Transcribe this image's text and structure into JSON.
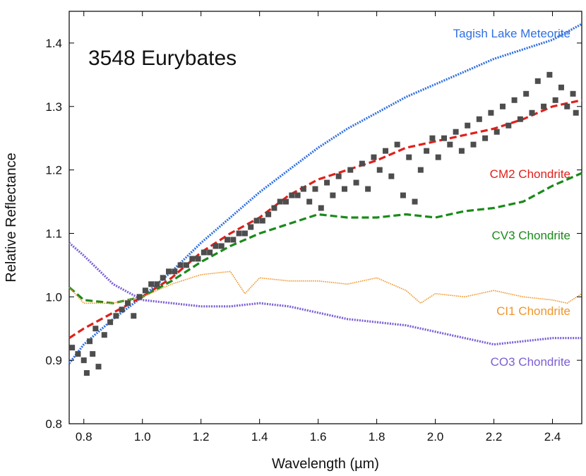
{
  "chart_data": {
    "type": "line",
    "annotation": "3548 Eurybates",
    "xlabel": "Wavelength (µm)",
    "ylabel": "Relative Reflectance",
    "xlim": [
      0.75,
      2.5
    ],
    "ylim": [
      0.8,
      1.45
    ],
    "xticks": [
      0.8,
      1.0,
      1.2,
      1.4,
      1.6,
      1.8,
      2.0,
      2.2,
      2.4
    ],
    "xtick_labels": [
      "0.8",
      "1.0",
      "1.2",
      "1.4",
      "1.6",
      "1.8",
      "2.0",
      "2.2",
      "2.4"
    ],
    "yticks": [
      0.8,
      0.9,
      1.0,
      1.1,
      1.2,
      1.3,
      1.4
    ],
    "ytick_labels": [
      "0.8",
      "0.9",
      "1.0",
      "1.1",
      "1.2",
      "1.3",
      "1.4"
    ],
    "grid": false,
    "series": [
      {
        "name": "Tagish Lake Meteorite",
        "color": "#2f6fe0",
        "style": "dotted-thick",
        "x": [
          0.75,
          0.8,
          0.9,
          1.0,
          1.1,
          1.2,
          1.3,
          1.4,
          1.5,
          1.6,
          1.7,
          1.8,
          1.9,
          2.0,
          2.1,
          2.2,
          2.3,
          2.4,
          2.5
        ],
        "y": [
          0.895,
          0.925,
          0.965,
          1.0,
          1.04,
          1.085,
          1.125,
          1.165,
          1.2,
          1.235,
          1.265,
          1.29,
          1.315,
          1.335,
          1.355,
          1.375,
          1.39,
          1.405,
          1.43
        ]
      },
      {
        "name": "CM2 Chondrite",
        "color": "#e0201c",
        "style": "dashed",
        "x": [
          0.75,
          0.8,
          0.9,
          1.0,
          1.1,
          1.2,
          1.3,
          1.4,
          1.5,
          1.6,
          1.7,
          1.8,
          1.9,
          2.0,
          2.1,
          2.2,
          2.3,
          2.4,
          2.5
        ],
        "y": [
          0.935,
          0.95,
          0.975,
          1.0,
          1.03,
          1.07,
          1.1,
          1.125,
          1.16,
          1.185,
          1.2,
          1.215,
          1.235,
          1.245,
          1.255,
          1.265,
          1.28,
          1.3,
          1.31
        ]
      },
      {
        "name": "CV3 Chondrite",
        "color": "#1a8a1a",
        "style": "dashed",
        "x": [
          0.75,
          0.8,
          0.9,
          1.0,
          1.1,
          1.2,
          1.3,
          1.4,
          1.5,
          1.6,
          1.7,
          1.8,
          1.9,
          2.0,
          2.1,
          2.2,
          2.3,
          2.4,
          2.5
        ],
        "y": [
          1.015,
          0.995,
          0.99,
          1.0,
          1.025,
          1.055,
          1.08,
          1.1,
          1.115,
          1.13,
          1.125,
          1.125,
          1.13,
          1.125,
          1.135,
          1.14,
          1.15,
          1.175,
          1.195
        ]
      },
      {
        "name": "CI1 Chondrite",
        "color": "#f0962a",
        "style": "fine-dotted",
        "x": [
          0.75,
          0.8,
          0.9,
          1.0,
          1.1,
          1.2,
          1.3,
          1.35,
          1.4,
          1.5,
          1.6,
          1.7,
          1.8,
          1.9,
          1.95,
          2.0,
          2.1,
          2.2,
          2.3,
          2.4,
          2.45,
          2.5
        ],
        "y": [
          1.015,
          0.99,
          0.99,
          1.0,
          1.02,
          1.035,
          1.04,
          1.005,
          1.03,
          1.025,
          1.025,
          1.02,
          1.03,
          1.01,
          0.99,
          1.005,
          1.0,
          1.01,
          1.0,
          0.995,
          0.99,
          1.005
        ]
      },
      {
        "name": "CO3 Chondrite",
        "color": "#7b5fd6",
        "style": "dotted-thick",
        "x": [
          0.75,
          0.8,
          0.9,
          1.0,
          1.1,
          1.2,
          1.3,
          1.4,
          1.5,
          1.6,
          1.7,
          1.8,
          1.9,
          2.0,
          2.1,
          2.2,
          2.3,
          2.4,
          2.5
        ],
        "y": [
          1.085,
          1.065,
          1.02,
          0.995,
          0.99,
          0.985,
          0.985,
          0.99,
          0.985,
          0.975,
          0.965,
          0.96,
          0.955,
          0.945,
          0.935,
          0.925,
          0.93,
          0.935,
          0.935
        ]
      },
      {
        "name": "3548 Eurybates",
        "color": "#4d4d4d",
        "style": "scatter",
        "x": [
          0.76,
          0.78,
          0.8,
          0.81,
          0.82,
          0.83,
          0.84,
          0.85,
          0.87,
          0.89,
          0.91,
          0.93,
          0.95,
          0.97,
          0.99,
          1.01,
          1.03,
          1.05,
          1.07,
          1.09,
          1.11,
          1.13,
          1.15,
          1.17,
          1.19,
          1.21,
          1.23,
          1.25,
          1.27,
          1.29,
          1.31,
          1.33,
          1.35,
          1.37,
          1.39,
          1.41,
          1.43,
          1.45,
          1.47,
          1.49,
          1.51,
          1.53,
          1.55,
          1.57,
          1.59,
          1.61,
          1.63,
          1.65,
          1.67,
          1.69,
          1.71,
          1.73,
          1.75,
          1.77,
          1.79,
          1.81,
          1.83,
          1.85,
          1.87,
          1.89,
          1.91,
          1.93,
          1.95,
          1.97,
          1.99,
          2.01,
          2.03,
          2.05,
          2.07,
          2.09,
          2.11,
          2.13,
          2.15,
          2.17,
          2.19,
          2.21,
          2.23,
          2.25,
          2.27,
          2.29,
          2.31,
          2.33,
          2.35,
          2.37,
          2.39,
          2.41,
          2.43,
          2.45,
          2.47,
          2.48
        ],
        "y": [
          0.92,
          0.91,
          0.9,
          0.88,
          0.93,
          0.91,
          0.95,
          0.89,
          0.94,
          0.96,
          0.97,
          0.98,
          0.99,
          0.97,
          1.0,
          1.01,
          1.02,
          1.02,
          1.03,
          1.04,
          1.04,
          1.05,
          1.05,
          1.06,
          1.06,
          1.07,
          1.07,
          1.08,
          1.08,
          1.09,
          1.09,
          1.1,
          1.1,
          1.11,
          1.12,
          1.12,
          1.13,
          1.14,
          1.15,
          1.15,
          1.16,
          1.16,
          1.17,
          1.15,
          1.17,
          1.14,
          1.18,
          1.16,
          1.19,
          1.17,
          1.2,
          1.18,
          1.21,
          1.17,
          1.22,
          1.2,
          1.23,
          1.19,
          1.24,
          1.16,
          1.22,
          1.15,
          1.2,
          1.23,
          1.25,
          1.22,
          1.25,
          1.24,
          1.26,
          1.23,
          1.27,
          1.24,
          1.28,
          1.25,
          1.29,
          1.26,
          1.3,
          1.27,
          1.31,
          1.28,
          1.32,
          1.29,
          1.34,
          1.3,
          1.35,
          1.31,
          1.33,
          1.3,
          1.32,
          1.29
        ]
      }
    ]
  }
}
